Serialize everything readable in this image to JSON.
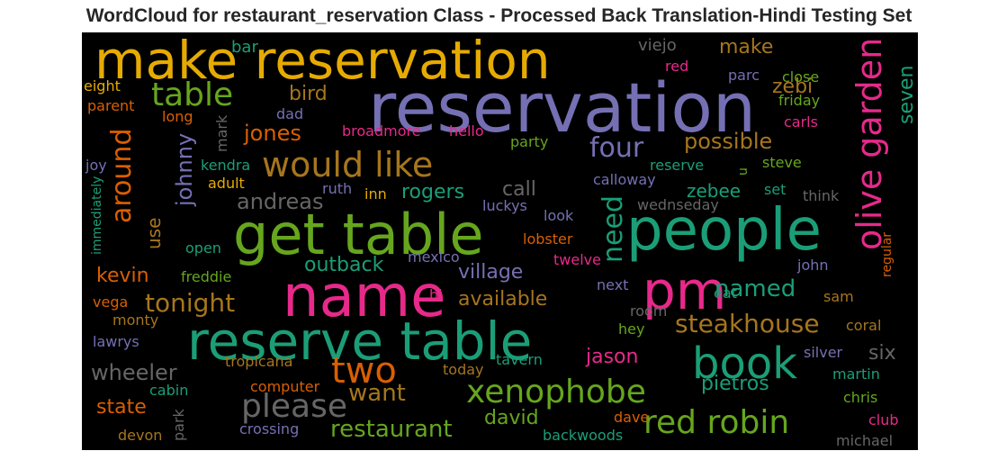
{
  "title": "WordCloud for restaurant_reservation Class - Processed Back Translation-Hindi Testing Set",
  "palette": {
    "background": "#000000",
    "purple": "#7570b3",
    "green": "#1b9e77",
    "orange": "#d95f02",
    "pink": "#e7298a",
    "olive": "#66a61e",
    "gold": "#e6ab02",
    "brown": "#a6761d",
    "gray": "#666666"
  },
  "words": [
    {
      "text": "reservation",
      "color": "#7570b3",
      "vertical": false
    },
    {
      "text": "make reservation",
      "color": "#e6ab02",
      "vertical": false
    },
    {
      "text": "get table",
      "color": "#66a61e",
      "vertical": false
    },
    {
      "text": "people",
      "color": "#1b9e77",
      "vertical": false
    },
    {
      "text": "name",
      "color": "#e7298a",
      "vertical": false
    },
    {
      "text": "pm",
      "color": "#e7298a",
      "vertical": false
    },
    {
      "text": "reserve table",
      "color": "#1b9e77",
      "vertical": false
    },
    {
      "text": "book",
      "color": "#1b9e77",
      "vertical": false
    },
    {
      "text": "two",
      "color": "#d95f02",
      "vertical": false
    },
    {
      "text": "olive garden",
      "color": "#e7298a",
      "vertical": true
    },
    {
      "text": "would like",
      "color": "#a6761d",
      "vertical": false
    },
    {
      "text": "table",
      "color": "#66a61e",
      "vertical": false
    },
    {
      "text": "please",
      "color": "#666666",
      "vertical": false
    },
    {
      "text": "xenophobe",
      "color": "#66a61e",
      "vertical": false
    },
    {
      "text": "red robin",
      "color": "#66a61e",
      "vertical": false
    },
    {
      "text": "tonight",
      "color": "#a6761d",
      "vertical": false
    },
    {
      "text": "steakhouse",
      "color": "#a6761d",
      "vertical": false
    },
    {
      "text": "around",
      "color": "#d95f02",
      "vertical": true
    },
    {
      "text": "four",
      "color": "#7570b3",
      "vertical": false
    },
    {
      "text": "need",
      "color": "#1b9e77",
      "vertical": true
    },
    {
      "text": "want",
      "color": "#a6761d",
      "vertical": false
    },
    {
      "text": "restaurant",
      "color": "#66a61e",
      "vertical": false
    },
    {
      "text": "johnny",
      "color": "#7570b3",
      "vertical": true
    },
    {
      "text": "andreas",
      "color": "#666666",
      "vertical": false
    },
    {
      "text": "wheeler",
      "color": "#666666",
      "vertical": false
    },
    {
      "text": "possible",
      "color": "#a6761d",
      "vertical": false
    },
    {
      "text": "named",
      "color": "#1b9e77",
      "vertical": false
    },
    {
      "text": "jones",
      "color": "#d95f02",
      "vertical": false
    },
    {
      "text": "bird",
      "color": "#a6761d",
      "vertical": false
    },
    {
      "text": "zebi",
      "color": "#a6761d",
      "vertical": false
    },
    {
      "text": "make",
      "color": "#a6761d",
      "vertical": false
    },
    {
      "text": "outback",
      "color": "#1b9e77",
      "vertical": false
    },
    {
      "text": "village",
      "color": "#7570b3",
      "vertical": false
    },
    {
      "text": "available",
      "color": "#a6761d",
      "vertical": false
    },
    {
      "text": "kevin",
      "color": "#d95f02",
      "vertical": false
    },
    {
      "text": "rogers",
      "color": "#1b9e77",
      "vertical": false
    },
    {
      "text": "call",
      "color": "#666666",
      "vertical": false
    },
    {
      "text": "jason",
      "color": "#e7298a",
      "vertical": false
    },
    {
      "text": "pietros",
      "color": "#1b9e77",
      "vertical": false
    },
    {
      "text": "david",
      "color": "#66a61e",
      "vertical": false
    },
    {
      "text": "state",
      "color": "#d95f02",
      "vertical": false
    },
    {
      "text": "zebee",
      "color": "#1b9e77",
      "vertical": false
    },
    {
      "text": "seven",
      "color": "#1b9e77",
      "vertical": true
    },
    {
      "text": "six",
      "color": "#666666",
      "vertical": false
    },
    {
      "text": "use",
      "color": "#a6761d",
      "vertical": true
    },
    {
      "text": "bar",
      "color": "#1b9e77",
      "vertical": false
    },
    {
      "text": "viejo",
      "color": "#666666",
      "vertical": false
    },
    {
      "text": "red",
      "color": "#e7298a",
      "vertical": false
    },
    {
      "text": "parc",
      "color": "#7570b3",
      "vertical": false
    },
    {
      "text": "close",
      "color": "#66a61e",
      "vertical": false
    },
    {
      "text": "eight",
      "color": "#e6ab02",
      "vertical": false
    },
    {
      "text": "parent",
      "color": "#d95f02",
      "vertical": false
    },
    {
      "text": "long",
      "color": "#d95f02",
      "vertical": false
    },
    {
      "text": "mark",
      "color": "#666666",
      "vertical": true
    },
    {
      "text": "dad",
      "color": "#7570b3",
      "vertical": false
    },
    {
      "text": "friday",
      "color": "#66a61e",
      "vertical": false
    },
    {
      "text": "carls",
      "color": "#e7298a",
      "vertical": false
    },
    {
      "text": "broadmore",
      "color": "#e7298a",
      "vertical": false
    },
    {
      "text": "hello",
      "color": "#e7298a",
      "vertical": false
    },
    {
      "text": "party",
      "color": "#66a61e",
      "vertical": false
    },
    {
      "text": "joy",
      "color": "#7570b3",
      "vertical": false
    },
    {
      "text": "kendra",
      "color": "#1b9e77",
      "vertical": false
    },
    {
      "text": "adult",
      "color": "#e6ab02",
      "vertical": false
    },
    {
      "text": "immediately",
      "color": "#1b9e77",
      "vertical": true
    },
    {
      "text": "ruth",
      "color": "#7570b3",
      "vertical": false
    },
    {
      "text": "inn",
      "color": "#e6ab02",
      "vertical": false
    },
    {
      "text": "reserve",
      "color": "#1b9e77",
      "vertical": false
    },
    {
      "text": "calloway",
      "color": "#7570b3",
      "vertical": false
    },
    {
      "text": "steve",
      "color": "#66a61e",
      "vertical": false
    },
    {
      "text": "u",
      "color": "#66a61e",
      "vertical": true
    },
    {
      "text": "set",
      "color": "#1b9e77",
      "vertical": false
    },
    {
      "text": "think",
      "color": "#666666",
      "vertical": false
    },
    {
      "text": "luckys",
      "color": "#7570b3",
      "vertical": false
    },
    {
      "text": "wednseday",
      "color": "#666666",
      "vertical": false
    },
    {
      "text": "look",
      "color": "#7570b3",
      "vertical": false
    },
    {
      "text": "open",
      "color": "#1b9e77",
      "vertical": false
    },
    {
      "text": "lobster",
      "color": "#d95f02",
      "vertical": false
    },
    {
      "text": "mexico",
      "color": "#7570b3",
      "vertical": false
    },
    {
      "text": "twelve",
      "color": "#e7298a",
      "vertical": false
    },
    {
      "text": "regular",
      "color": "#d95f02",
      "vertical": true
    },
    {
      "text": "freddie",
      "color": "#66a61e",
      "vertical": false
    },
    {
      "text": "eat",
      "color": "#1b9e77",
      "vertical": false
    },
    {
      "text": "john",
      "color": "#7570b3",
      "vertical": false
    },
    {
      "text": "hi",
      "color": "#e7298a",
      "vertical": false
    },
    {
      "text": "next",
      "color": "#7570b3",
      "vertical": false
    },
    {
      "text": "vega",
      "color": "#d95f02",
      "vertical": false
    },
    {
      "text": "monty",
      "color": "#a6761d",
      "vertical": false
    },
    {
      "text": "room",
      "color": "#666666",
      "vertical": false
    },
    {
      "text": "hey",
      "color": "#66a61e",
      "vertical": false
    },
    {
      "text": "sam",
      "color": "#a6761d",
      "vertical": false
    },
    {
      "text": "coral",
      "color": "#a6761d",
      "vertical": false
    },
    {
      "text": "lawrys",
      "color": "#7570b3",
      "vertical": false
    },
    {
      "text": "silver",
      "color": "#7570b3",
      "vertical": false
    },
    {
      "text": "tropicana",
      "color": "#a6761d",
      "vertical": false
    },
    {
      "text": "tavern",
      "color": "#1b9e77",
      "vertical": false
    },
    {
      "text": "today",
      "color": "#a6761d",
      "vertical": false
    },
    {
      "text": "martin",
      "color": "#1b9e77",
      "vertical": false
    },
    {
      "text": "computer",
      "color": "#d95f02",
      "vertical": false
    },
    {
      "text": "cabin",
      "color": "#1b9e77",
      "vertical": false
    },
    {
      "text": "chris",
      "color": "#66a61e",
      "vertical": false
    },
    {
      "text": "park",
      "color": "#666666",
      "vertical": true
    },
    {
      "text": "dave",
      "color": "#d95f02",
      "vertical": false
    },
    {
      "text": "club",
      "color": "#e7298a",
      "vertical": false
    },
    {
      "text": "devon",
      "color": "#a6761d",
      "vertical": false
    },
    {
      "text": "crossing",
      "color": "#7570b3",
      "vertical": false
    },
    {
      "text": "backwoods",
      "color": "#1b9e77",
      "vertical": false
    },
    {
      "text": "michael",
      "color": "#666666",
      "vertical": false
    }
  ]
}
